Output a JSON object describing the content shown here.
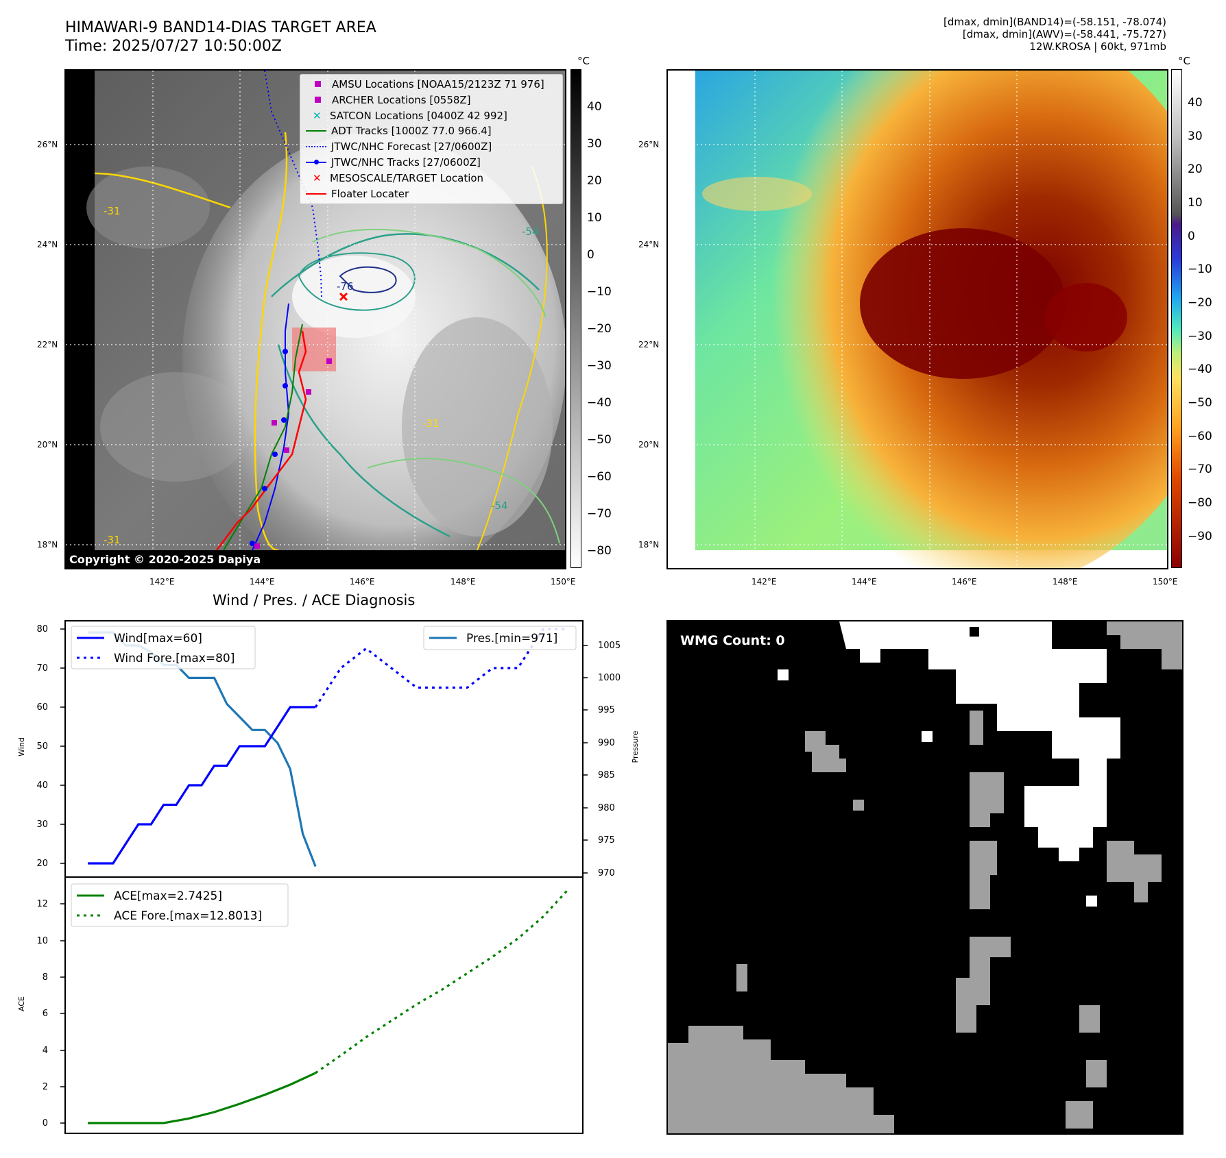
{
  "header": {
    "title_line1": "HIMAWARI-9 BAND14-DIAS TARGET AREA",
    "title_line2": "Time: 2025/07/27 10:50:00Z",
    "info_line1": "[dmax, dmin](BAND14)=(-58.151, -78.074)",
    "info_line2": "[dmax, dmin](AWV)=(-58.441, -75.727)",
    "info_line3": "12W.KROSA | 60kt, 971mb"
  },
  "map": {
    "lat_labels": [
      "26°N",
      "24°N",
      "22°N",
      "20°N",
      "18°N"
    ],
    "lon_labels": [
      "142°E",
      "144°E",
      "146°E",
      "148°E",
      "150°E"
    ],
    "copyright": "Copyright © 2020-2025 Dapiya",
    "contour_labels": [
      "-31",
      "-76",
      "-54",
      "-31",
      "-54",
      "-31"
    ]
  },
  "colorbar_left": {
    "unit": "°C",
    "ticks": [
      "40",
      "30",
      "20",
      "10",
      "0",
      "−10",
      "−20",
      "−30",
      "−40",
      "−50",
      "−60",
      "−70",
      "−80"
    ]
  },
  "colorbar_right": {
    "unit": "°C",
    "ticks": [
      "40",
      "30",
      "20",
      "10",
      "0",
      "−10",
      "−20",
      "−30",
      "−40",
      "−50",
      "−60",
      "−70",
      "−80",
      "−90"
    ]
  },
  "legend": {
    "items": [
      {
        "label": "AMSU Locations [NOAA15/2123Z 71 976]",
        "color": "#c000c0",
        "style": "square"
      },
      {
        "label": "ARCHER Locations [0558Z]",
        "color": "#c000c0",
        "style": "square"
      },
      {
        "label": "SATCON Locations [0400Z 42 992]",
        "color": "#00b0b0",
        "style": "x"
      },
      {
        "label": "ADT Tracks [1000Z 77.0 966.4]",
        "color": "#008000",
        "style": "line"
      },
      {
        "label": "JTWC/NHC Forecast [27/0600Z]",
        "color": "#0000ff",
        "style": "dotted"
      },
      {
        "label": "JTWC/NHC Tracks [27/0600Z]",
        "color": "#0000ff",
        "style": "line-dot"
      },
      {
        "label": "MESOSCALE/TARGET Location",
        "color": "#ff0000",
        "style": "x"
      },
      {
        "label": "Floater Locater",
        "color": "#ff0000",
        "style": "line"
      }
    ]
  },
  "diagnosis": {
    "title": "Wind / Pres. / ACE Diagnosis",
    "wind_ylabel": "Wind",
    "pres_ylabel": "Pressure",
    "ace_ylabel": "ACE",
    "wind_legend": [
      "Wind[max=60]",
      "Wind Fore.[max=80]"
    ],
    "pres_legend": "Pres.[min=971]",
    "ace_legend": [
      "ACE[max=2.7425]",
      "ACE Fore.[max=12.8013]"
    ],
    "wind_ticks": [
      "80",
      "70",
      "60",
      "50",
      "40",
      "30",
      "20"
    ],
    "pres_ticks": [
      "1005",
      "1000",
      "995",
      "990",
      "985",
      "980",
      "975",
      "970"
    ],
    "ace_ticks": [
      "12",
      "10",
      "8",
      "6",
      "4",
      "2",
      "0"
    ]
  },
  "wmg": {
    "label": "WMG Count: 0"
  },
  "chart_data": [
    {
      "type": "line",
      "title": "Wind / Pres. / ACE Diagnosis",
      "ylabel": "Wind",
      "ylim": [
        18,
        82
      ],
      "series": [
        {
          "name": "Wind[max=60]",
          "x": [
            0,
            1,
            2,
            3,
            4,
            5,
            6,
            7,
            8,
            9,
            10,
            11,
            12,
            13,
            14,
            15,
            16,
            17,
            18
          ],
          "values": [
            20,
            20,
            20,
            25,
            30,
            30,
            35,
            35,
            40,
            40,
            45,
            45,
            50,
            50,
            50,
            55,
            60,
            60,
            60
          ]
        },
        {
          "name": "Wind Fore.[max=80]",
          "x": [
            18,
            20,
            22,
            24,
            26,
            28,
            30,
            32,
            34,
            36,
            38
          ],
          "values": [
            60,
            70,
            75,
            70,
            65,
            65,
            65,
            70,
            70,
            80,
            80
          ]
        }
      ]
    },
    {
      "type": "line",
      "ylabel": "Pressure",
      "ylim": [
        969,
        1007
      ],
      "series": [
        {
          "name": "Pres.[min=971]",
          "x": [
            0,
            1,
            2,
            3,
            4,
            5,
            6,
            7,
            8,
            9,
            10,
            11,
            12,
            13,
            14,
            15,
            16,
            17,
            18
          ],
          "values": [
            1007,
            1007,
            1007,
            1005,
            1005,
            1004,
            1002,
            1002,
            1000,
            1000,
            1000,
            996,
            994,
            992,
            992,
            990,
            986,
            976,
            971
          ]
        }
      ]
    },
    {
      "type": "line",
      "ylabel": "ACE",
      "ylim": [
        -0.6,
        13.3
      ],
      "series": [
        {
          "name": "ACE[max=2.7425]",
          "x": [
            0,
            6,
            8,
            10,
            12,
            14,
            16,
            18
          ],
          "values": [
            0,
            0,
            0.25,
            0.6,
            1.05,
            1.55,
            2.1,
            2.7425
          ]
        },
        {
          "name": "ACE Fore.[max=12.8013]",
          "x": [
            18,
            20,
            22,
            24,
            26,
            28,
            30,
            32,
            34,
            36,
            38
          ],
          "values": [
            2.7425,
            3.7,
            4.7,
            5.6,
            6.5,
            7.3,
            8.2,
            9.1,
            10.1,
            11.3,
            12.8013
          ]
        }
      ]
    }
  ]
}
